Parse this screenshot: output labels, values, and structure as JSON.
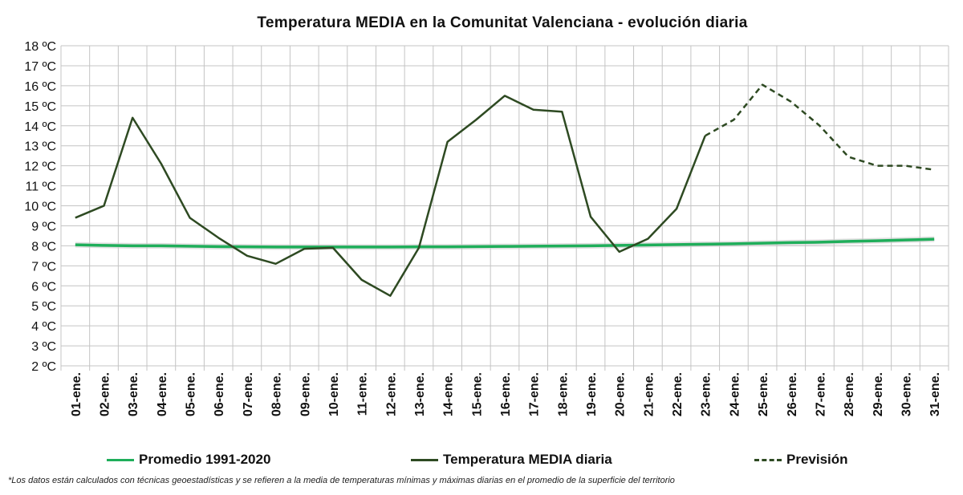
{
  "chart_data": {
    "type": "line",
    "title": "Temperatura MEDIA en la Comunitat Valenciana - evolución diaria",
    "xlabel": "",
    "ylabel": "",
    "ylim": [
      2,
      18
    ],
    "yticks": [
      2,
      3,
      4,
      5,
      6,
      7,
      8,
      9,
      10,
      11,
      12,
      13,
      14,
      15,
      16,
      17,
      18
    ],
    "ytick_suffix": " ºC",
    "grid": true,
    "legend_position": "bottom",
    "categories": [
      "01-ene.",
      "02-ene.",
      "03-ene.",
      "04-ene.",
      "05-ene.",
      "06-ene.",
      "07-ene.",
      "08-ene.",
      "09-ene.",
      "10-ene.",
      "11-ene.",
      "12-ene.",
      "13-ene.",
      "14-ene.",
      "15-ene.",
      "16-ene.",
      "17-ene.",
      "18-ene.",
      "19-ene.",
      "20-ene.",
      "21-ene.",
      "22-ene.",
      "23-ene.",
      "24-ene.",
      "25-ene.",
      "26-ene.",
      "27-ene.",
      "28-ene.",
      "29-ene.",
      "30-ene.",
      "31-ene."
    ],
    "series": [
      {
        "name": "Promedio 1991-2020",
        "color": "#1fae5a",
        "style": "solid",
        "values": [
          8.05,
          8.02,
          8.0,
          8.0,
          7.98,
          7.96,
          7.95,
          7.94,
          7.94,
          7.94,
          7.94,
          7.94,
          7.95,
          7.95,
          7.96,
          7.97,
          7.98,
          7.99,
          8.0,
          8.02,
          8.04,
          8.06,
          8.08,
          8.1,
          8.13,
          8.16,
          8.18,
          8.22,
          8.25,
          8.29,
          8.33
        ]
      },
      {
        "name": "Temperatura MEDIA diaria",
        "color": "#2e4a22",
        "style": "solid",
        "values": [
          9.4,
          10.0,
          14.4,
          12.1,
          9.4,
          8.4,
          7.5,
          7.1,
          7.85,
          7.9,
          6.3,
          5.5,
          7.9,
          13.2,
          14.3,
          15.5,
          14.8,
          14.7,
          9.45,
          7.7,
          8.35,
          9.85,
          13.5,
          null,
          null,
          null,
          null,
          null,
          null,
          null,
          null
        ]
      },
      {
        "name": "Previsión",
        "color": "#2e4a22",
        "style": "dashed",
        "values": [
          null,
          null,
          null,
          null,
          null,
          null,
          null,
          null,
          null,
          null,
          null,
          null,
          null,
          null,
          null,
          null,
          null,
          null,
          null,
          null,
          null,
          null,
          13.5,
          14.3,
          16.05,
          15.2,
          14.0,
          12.45,
          12.0,
          12.0,
          11.8
        ]
      }
    ]
  },
  "footnote": "*Los datos están calculados con técnicas geoestadísticas y se refieren a la media de temperaturas mínimas y máximas diarias en el promedio de la superficie del territorio"
}
